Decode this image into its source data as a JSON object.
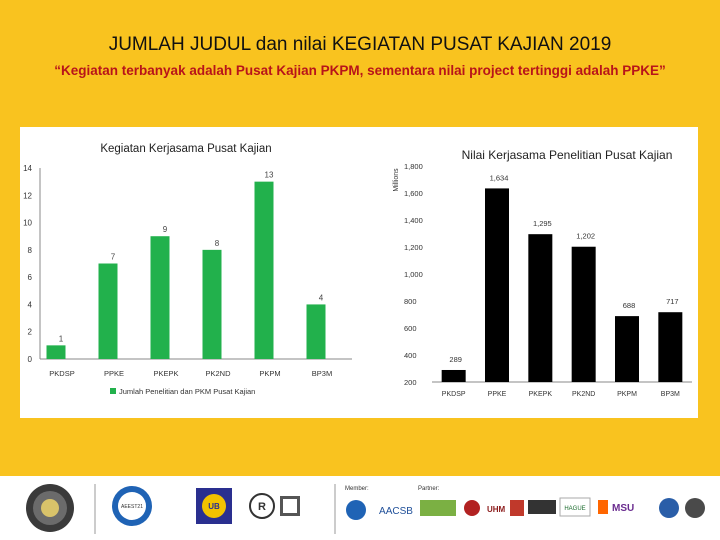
{
  "slide": {
    "title": "JUMLAH JUDUL dan nilai KEGIATAN PUSAT KAJIAN 2019",
    "subtitle": "“Kegiatan terbanyak adalah Pusat Kajian PKPM, sementara nilai project tertinggi adalah PPKE”"
  },
  "chart_data": [
    {
      "type": "bar",
      "title": "Kegiatan Kerjasama Pusat Kajian",
      "categories": [
        "PKDSP",
        "PPKE",
        "PKEPK",
        "PK2ND",
        "PKPM",
        "BP3M"
      ],
      "series": [
        {
          "name": "Jumlah Penelitian dan PKM Pusat Kajian",
          "values": [
            1,
            7,
            9,
            8,
            13,
            4
          ]
        }
      ],
      "ylim": [
        0,
        14
      ],
      "yticks": [
        0,
        2,
        4,
        6,
        8,
        10,
        12,
        14
      ],
      "legend": "bottom",
      "grid": false,
      "color": "#22b14c"
    },
    {
      "type": "bar",
      "title": "Nilai Kerjasama Penelitian Pusat Kajian",
      "ylabel": "Millions",
      "categories": [
        "PKDSP",
        "PPKE",
        "PKEPK",
        "PK2ND",
        "PKPM",
        "BP3M"
      ],
      "values": [
        289,
        1634,
        1295,
        1202,
        688,
        717
      ],
      "value_labels": [
        "289",
        "1,634",
        "1,295",
        "1,202",
        "688",
        "717"
      ],
      "ylim": [
        200,
        1800
      ],
      "yticks": [
        200,
        400,
        600,
        800,
        1000,
        1200,
        1400,
        1600,
        1800
      ],
      "ytick_labels": [
        "200",
        "400",
        "600",
        "800",
        "1,000",
        "1,200",
        "1,400",
        "1,600",
        "1,800"
      ],
      "grid": false,
      "color": "#000000"
    }
  ],
  "footer": {
    "logos": [
      "AEEST21",
      "AACSB",
      "UB",
      "UHM",
      "HAGUE",
      "MSU"
    ],
    "member_label": "Member:",
    "partner_label": "Partner:"
  }
}
